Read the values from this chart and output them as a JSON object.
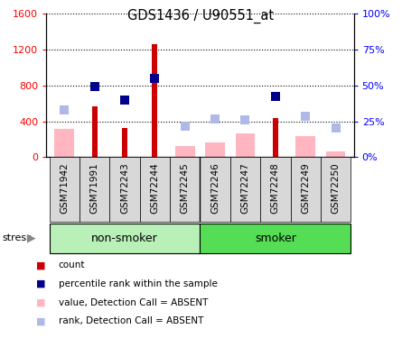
{
  "title": "GDS1436 / U90551_at",
  "samples": [
    "GSM71942",
    "GSM71991",
    "GSM72243",
    "GSM72244",
    "GSM72245",
    "GSM72246",
    "GSM72247",
    "GSM72248",
    "GSM72249",
    "GSM72250"
  ],
  "count_values": [
    null,
    570,
    330,
    1260,
    null,
    null,
    null,
    440,
    null,
    null
  ],
  "rank_values": [
    null,
    790,
    640,
    880,
    null,
    null,
    null,
    680,
    null,
    null
  ],
  "absent_value_values": [
    310,
    null,
    null,
    null,
    120,
    160,
    260,
    null,
    230,
    60
  ],
  "absent_rank_values": [
    530,
    null,
    null,
    null,
    350,
    430,
    420,
    null,
    460,
    330
  ],
  "ylim_left": [
    0,
    1600
  ],
  "ylim_right": [
    0,
    100
  ],
  "yticks_left": [
    0,
    400,
    800,
    1200,
    1600
  ],
  "yticks_right": [
    0,
    25,
    50,
    75,
    100
  ],
  "yticklabels_right": [
    "0%",
    "25%",
    "50%",
    "75%",
    "100%"
  ],
  "color_count": "#cc0000",
  "color_rank": "#00008b",
  "color_absent_value": "#ffb6c1",
  "color_absent_rank": "#b0b8e8",
  "group_bg_light": "#b8f0b8",
  "group_bg_dark": "#55dd55",
  "nonsmoker_count": 5,
  "smoker_count": 5,
  "stress_label": "stress",
  "marker_size": 7,
  "absent_bar_width": 0.65,
  "count_bar_width": 0.18
}
